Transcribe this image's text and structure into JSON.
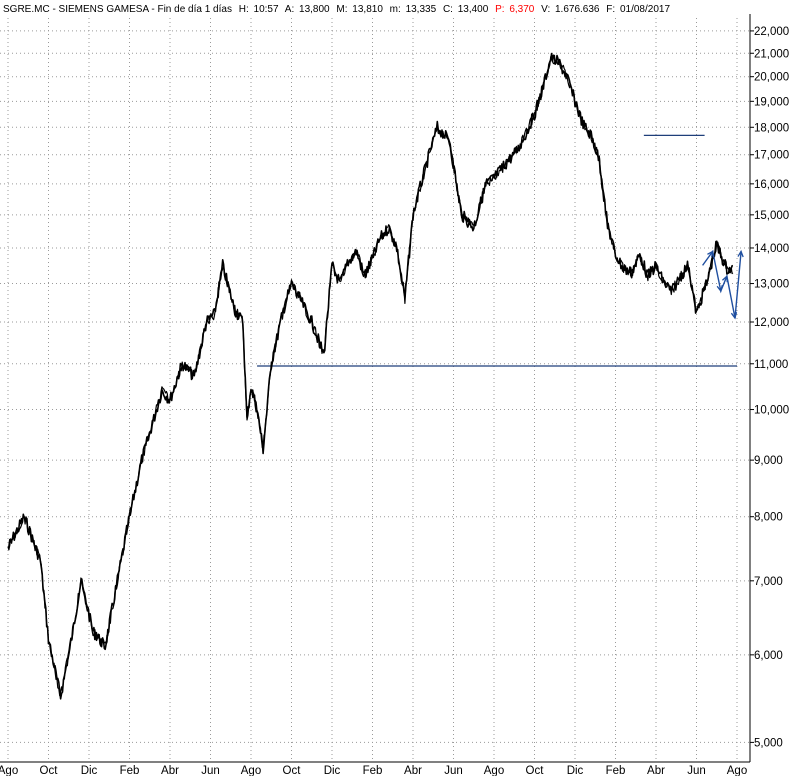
{
  "header": {
    "symbol": "SGRE.MC - SIEMENS GAMESA - Fin de día 1 días",
    "h_label": "H:",
    "h_value": "10:57",
    "a_label": "A:",
    "a_value": "13,800",
    "m_label": "M:",
    "m_value": "13,810",
    "min_label": "m:",
    "min_value": "13,335",
    "c_label": "C:",
    "c_value": "13,400",
    "p_label": "P:",
    "p_value": "6,370",
    "v_label": "V:",
    "v_value": "1.676.636",
    "f_label": "F:",
    "f_value": "01/08/2017"
  },
  "colors": {
    "price": "#000000",
    "support_line": "#1f3f7a",
    "projection": "#1f4fa0",
    "grid": "#9a9a9a",
    "p_value": "#ff0000"
  },
  "chart_data": {
    "type": "line",
    "title": "",
    "xlabel": "",
    "ylabel": "",
    "yscale": "log",
    "ylim": [
      4800,
      22600
    ],
    "grid": true,
    "y_ticks": [
      {
        "value": 5000,
        "label": "5,000"
      },
      {
        "value": 6000,
        "label": "6,000"
      },
      {
        "value": 7000,
        "label": "7,000"
      },
      {
        "value": 8000,
        "label": "8,000"
      },
      {
        "value": 9000,
        "label": "9,000"
      },
      {
        "value": 10000,
        "label": "10,000"
      },
      {
        "value": 11000,
        "label": "11,000"
      },
      {
        "value": 12000,
        "label": "12,000"
      },
      {
        "value": 13000,
        "label": "13,000"
      },
      {
        "value": 14000,
        "label": "14,000"
      },
      {
        "value": 15000,
        "label": "15,000"
      },
      {
        "value": 16000,
        "label": "16,000"
      },
      {
        "value": 17000,
        "label": "17,000"
      },
      {
        "value": 18000,
        "label": "18,000"
      },
      {
        "value": 19000,
        "label": "19,000"
      },
      {
        "value": 20000,
        "label": "20,000"
      },
      {
        "value": 21000,
        "label": "21,000"
      },
      {
        "value": 22000,
        "label": "22,000"
      }
    ],
    "x_ticks": [
      "Ago",
      "Oct",
      "Dic",
      "Feb",
      "Abr",
      "Jun",
      "Ago",
      "Oct",
      "Dic",
      "Feb",
      "Abr",
      "Jun",
      "Ago",
      "Oct",
      "Dic",
      "Feb",
      "Abr",
      "Jun",
      "Ago"
    ],
    "series": [
      {
        "x": [
          0.0,
          0.4,
          0.8,
          1.0,
          1.3,
          1.6,
          1.8,
          2.1,
          2.4,
          2.7,
          3.0,
          3.3,
          3.6,
          3.8,
          4.0,
          4.3,
          4.6,
          4.9,
          5.1,
          5.3,
          5.6,
          5.8,
          5.9,
          6.0,
          6.15,
          6.3,
          6.5,
          6.8,
          7.0,
          7.2,
          7.5,
          7.8,
          8.0,
          8.2,
          8.4,
          8.6,
          8.8,
          9.0,
          9.2,
          9.4,
          9.6,
          9.8,
          10.0,
          10.2,
          10.4,
          10.6,
          10.9,
          11.2,
          11.5,
          11.8,
          12.0,
          12.3,
          12.6,
          12.8,
          13.0,
          13.2,
          13.4,
          13.6,
          13.8,
          14.0,
          14.2,
          14.4,
          14.6,
          14.8,
          15.0,
          15.2,
          15.4,
          15.6,
          15.8,
          16.0,
          16.2,
          16.4,
          16.6,
          16.8,
          17.0,
          17.15,
          17.3,
          17.4,
          17.5,
          17.6,
          17.75,
          17.9
        ],
        "y": [
          7500,
          8000,
          7300,
          6200,
          5500,
          6300,
          7000,
          6300,
          6100,
          7000,
          8000,
          9000,
          9800,
          10400,
          10200,
          11000,
          10700,
          12000,
          12200,
          13500,
          12300,
          12000,
          9800,
          10500,
          10000,
          9200,
          11000,
          12300,
          13000,
          12600,
          12000,
          11200,
          13500,
          13000,
          13600,
          13900,
          13200,
          13700,
          14300,
          14600,
          14000,
          12600,
          15000,
          16000,
          17000,
          18000,
          17500,
          15000,
          14600,
          16000,
          16200,
          16700,
          17200,
          17800,
          18500,
          19500,
          20800,
          20600,
          20000,
          19000,
          18100,
          17700,
          16800,
          14700,
          13800,
          13400,
          13300,
          13800,
          13200,
          13500,
          13000,
          12800,
          13200,
          13500,
          12200,
          12700,
          13200,
          13700,
          14100,
          13800,
          13400,
          13400
        ],
        "smooth_note": ""
      }
    ],
    "support_lines": [
      {
        "x0": 6.15,
        "x1": 18.0,
        "y": 10950
      },
      {
        "x0": 15.7,
        "x1": 17.2,
        "y": 17700
      }
    ],
    "projection": {
      "x": [
        17.15,
        17.4,
        17.6,
        17.75,
        17.95,
        18.1
      ],
      "y": [
        13500,
        13900,
        12800,
        13200,
        12100,
        13900
      ]
    }
  }
}
